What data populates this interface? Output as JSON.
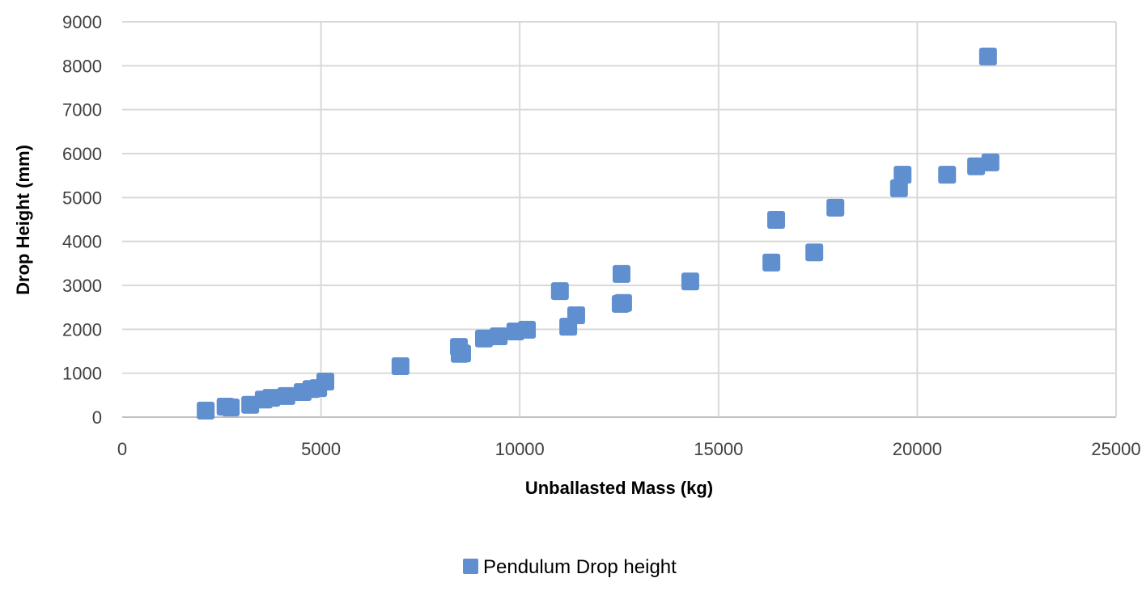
{
  "chart_data": {
    "type": "scatter",
    "title": "",
    "xlabel": "Unballasted Mass (kg)",
    "ylabel": "Drop Height (mm)",
    "xlim": [
      0,
      25000
    ],
    "ylim": [
      0,
      9000
    ],
    "xticks": [
      0,
      5000,
      10000,
      15000,
      20000,
      25000
    ],
    "yticks": [
      0,
      1000,
      2000,
      3000,
      4000,
      5000,
      6000,
      7000,
      8000,
      9000
    ],
    "grid": true,
    "legend": "bottom",
    "marker": "square",
    "series": [
      {
        "name": "Pendulum Drop height",
        "color": "#5f8fcf",
        "points": [
          [
            2100,
            150
          ],
          [
            2600,
            240
          ],
          [
            2730,
            220
          ],
          [
            3220,
            280
          ],
          [
            3560,
            400
          ],
          [
            3750,
            440
          ],
          [
            4130,
            480
          ],
          [
            4540,
            570
          ],
          [
            4760,
            640
          ],
          [
            4930,
            660
          ],
          [
            5110,
            810
          ],
          [
            7000,
            1160
          ],
          [
            8470,
            1600
          ],
          [
            8490,
            1440
          ],
          [
            8550,
            1450
          ],
          [
            9100,
            1790
          ],
          [
            9470,
            1840
          ],
          [
            9890,
            1950
          ],
          [
            10180,
            1990
          ],
          [
            11010,
            2870
          ],
          [
            11220,
            2060
          ],
          [
            11420,
            2320
          ],
          [
            12560,
            3260
          ],
          [
            12540,
            2580
          ],
          [
            12600,
            2600
          ],
          [
            14290,
            3090
          ],
          [
            16330,
            3520
          ],
          [
            16450,
            4490
          ],
          [
            17410,
            3750
          ],
          [
            17940,
            4770
          ],
          [
            19540,
            5210
          ],
          [
            19630,
            5520
          ],
          [
            20750,
            5520
          ],
          [
            21480,
            5710
          ],
          [
            21840,
            5800
          ],
          [
            21780,
            8210
          ]
        ]
      }
    ]
  }
}
